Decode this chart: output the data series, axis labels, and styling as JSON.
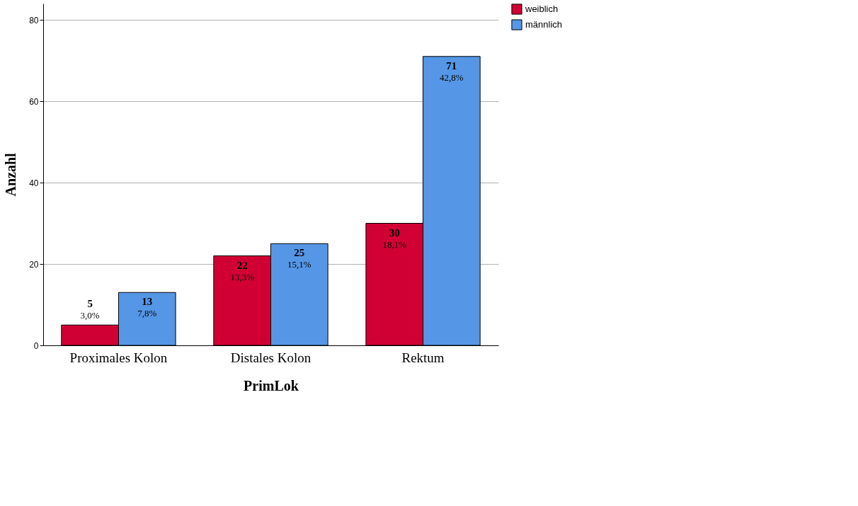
{
  "chart_data": {
    "type": "bar",
    "xlabel": "PrimLok",
    "ylabel": "Anzahl",
    "categories": [
      "Proximales Kolon",
      "Distales Kolon",
      "Rektum"
    ],
    "series": [
      {
        "name": "weiblich",
        "color": "#d10034",
        "values": [
          5,
          22,
          30
        ],
        "value_labels": [
          "5\n3,0%",
          "22\n13,3%",
          "30\n18,1%"
        ]
      },
      {
        "name": "männlich",
        "color": "#5596e6",
        "values": [
          13,
          25,
          71
        ],
        "value_labels": [
          "13\n7,8%",
          "25\n15,1%",
          "71\n42,8%"
        ]
      }
    ],
    "ylim": [
      0,
      84
    ],
    "yticks": [
      0,
      20,
      40,
      60,
      80
    ],
    "grid": "y",
    "legend": "top right"
  }
}
